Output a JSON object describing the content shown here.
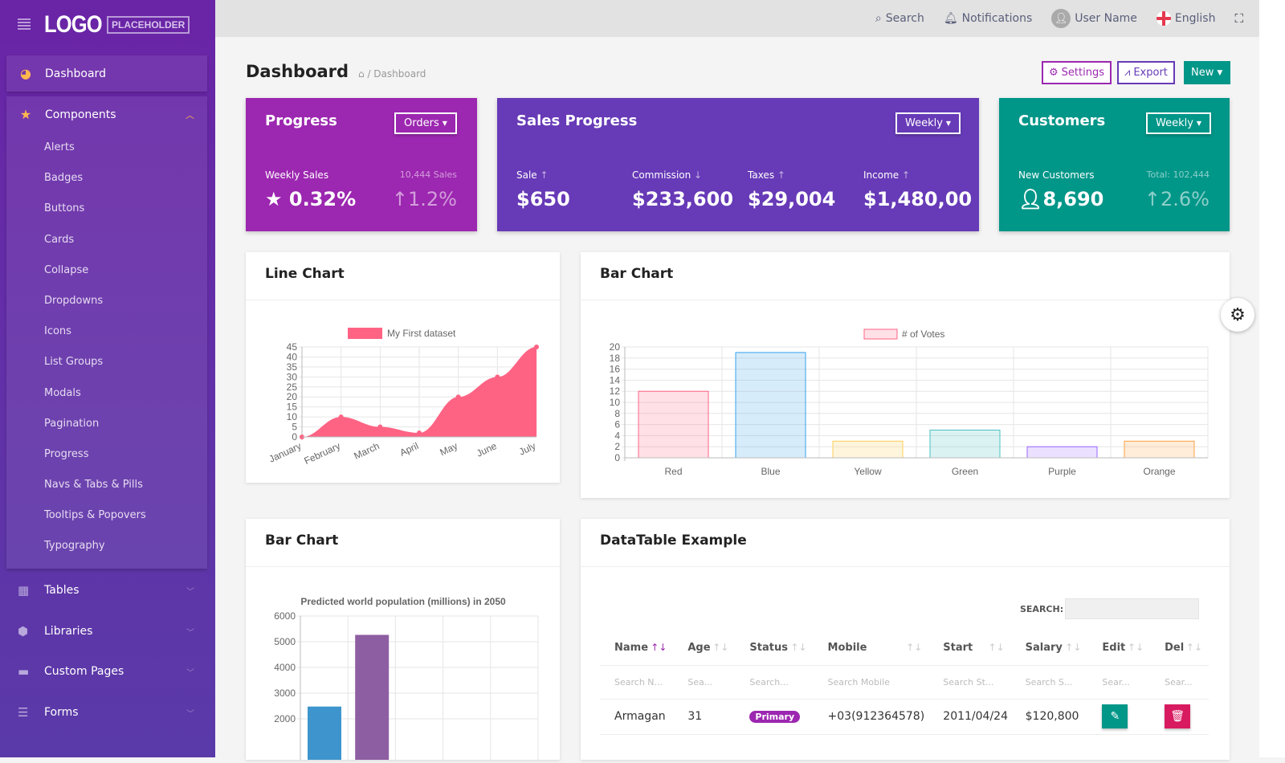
{
  "brand": {
    "logo": "LOGO",
    "logo_sub": "PLACEHOLDER"
  },
  "sidebar": {
    "dashboard": "Dashboard",
    "components": "Components",
    "sub": [
      "Alerts",
      "Badges",
      "Buttons",
      "Cards",
      "Collapse",
      "Dropdowns",
      "Icons",
      "List Groups",
      "Modals",
      "Pagination",
      "Progress",
      "Navs & Tabs & Pills",
      "Tooltips & Popovers",
      "Typography"
    ],
    "outer": [
      "Tables",
      "Libraries",
      "Custom Pages",
      "Forms"
    ],
    "icon_color": "#ffb74d"
  },
  "topbar": {
    "search": "Search",
    "notifications": "Notifications",
    "user": "User Name",
    "language": "English"
  },
  "page": {
    "title": "Dashboard",
    "breadcrumb": "/ Dashboard",
    "settings": "Settings",
    "export": "Export",
    "new": "New"
  },
  "cards": {
    "progress": {
      "title": "Progress",
      "dropdown": "Orders",
      "label": "Weekly Sales",
      "sub": "10,444 Sales",
      "value": "0.32%",
      "change": "1.2%",
      "color": "#9c27b0"
    },
    "sales": {
      "title": "Sales Progress",
      "dropdown": "Weekly",
      "color": "#673ab7",
      "items": [
        {
          "label": "Sale",
          "dir": "↑",
          "value": "$650"
        },
        {
          "label": "Commission",
          "dir": "↓",
          "value": "$233,600"
        },
        {
          "label": "Taxes",
          "dir": "↑",
          "value": "$29,004"
        },
        {
          "label": "Income",
          "dir": "↑",
          "value": "$1,480,00"
        }
      ]
    },
    "customers": {
      "title": "Customers",
      "dropdown": "Weekly",
      "label": "New Customers",
      "sub": "Total: 102,444",
      "value": "8,690",
      "change": "2.6%",
      "color": "#009688"
    }
  },
  "line_panel": {
    "title": "Line Chart"
  },
  "bar_panel": {
    "title": "Bar Chart"
  },
  "pop_panel": {
    "title": "Bar Chart"
  },
  "table_panel": {
    "title": "DataTable Example",
    "search_label": "SEARCH:",
    "columns": [
      "Name",
      "Age",
      "Status",
      "Mobile",
      "Start",
      "Salary",
      "Edit",
      "Del"
    ],
    "filters": [
      "Search N...",
      "Sea...",
      "Search...",
      "Search Mobile",
      "Search St...",
      "Search S...",
      "Sear...",
      "Sear..."
    ],
    "rows": [
      {
        "name": "Armagan",
        "age": "31",
        "status": "Primary",
        "mobile": "+03(912364578)",
        "start": "2011/04/24",
        "salary": "$120,800"
      }
    ]
  },
  "chart_data": [
    {
      "type": "area",
      "categories": [
        "January",
        "February",
        "March",
        "April",
        "May",
        "June",
        "July"
      ],
      "series": [
        {
          "name": "My First dataset",
          "values": [
            0,
            10,
            5,
            2,
            20,
            30,
            45
          ]
        }
      ],
      "ylim": [
        0,
        45
      ],
      "yticks": [
        0,
        5,
        10,
        15,
        20,
        25,
        30,
        35,
        40,
        45
      ],
      "grid": true,
      "legend": "top",
      "color": "#ff6384"
    },
    {
      "type": "bar",
      "categories": [
        "Red",
        "Blue",
        "Yellow",
        "Green",
        "Purple",
        "Orange"
      ],
      "series": [
        {
          "name": "# of Votes",
          "values": [
            12,
            19,
            3,
            5,
            2,
            3
          ]
        }
      ],
      "ylim": [
        0,
        20
      ],
      "yticks": [
        0,
        2,
        4,
        6,
        8,
        10,
        12,
        14,
        16,
        18,
        20
      ],
      "grid": true,
      "legend": "top",
      "colors": [
        "#ff6384",
        "#36a2eb",
        "#ffce56",
        "#4bc0c0",
        "#9966ff",
        "#ff9f40"
      ]
    },
    {
      "type": "bar",
      "title": "Predicted world population (millions) in 2050",
      "values": [
        2478,
        5267
      ],
      "ylim": [
        0,
        6000
      ],
      "yticks": [
        2000,
        3000,
        4000,
        5000,
        6000
      ],
      "grid": true,
      "colors": [
        "#3e95cd",
        "#8e5ea2"
      ]
    }
  ]
}
